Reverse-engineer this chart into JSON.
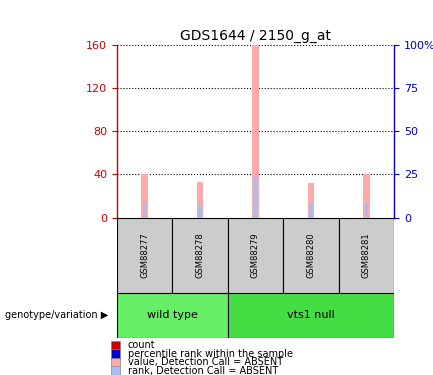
{
  "title": "GDS1644 / 2150_g_at",
  "samples": [
    "GSM88277",
    "GSM88278",
    "GSM88279",
    "GSM88280",
    "GSM88281"
  ],
  "groups": [
    {
      "label": "wild type",
      "samples": [
        0,
        1
      ],
      "color": "#66ee66"
    },
    {
      "label": "vts1 null",
      "samples": [
        2,
        3,
        4
      ],
      "color": "#44dd44"
    }
  ],
  "bar_values": [
    40,
    33,
    160,
    32,
    40
  ],
  "bar_rank_values": [
    14,
    12,
    38,
    13,
    14
  ],
  "bar_colors_absent": "#ffaaaa",
  "bar_rank_colors_absent": "#aabbee",
  "left_ylim": [
    0,
    160
  ],
  "left_yticks": [
    0,
    40,
    80,
    120,
    160
  ],
  "right_ylim": [
    0,
    100
  ],
  "right_yticks": [
    0,
    25,
    50,
    75,
    100
  ],
  "right_yticklabels": [
    "0",
    "25",
    "50",
    "75",
    "100%"
  ],
  "left_tick_color": "#cc0000",
  "right_tick_color": "#0000cc",
  "legend_items": [
    {
      "label": "count",
      "color": "#cc0000"
    },
    {
      "label": "percentile rank within the sample",
      "color": "#0000cc"
    },
    {
      "label": "value, Detection Call = ABSENT",
      "color": "#ffaaaa"
    },
    {
      "label": "rank, Detection Call = ABSENT",
      "color": "#aabbee"
    }
  ],
  "genotype_label": "genotype/variation",
  "pink_bar_width": 0.12,
  "blue_bar_width": 0.06,
  "sample_box_color": "#cccccc",
  "grid_linestyle": "dotted"
}
